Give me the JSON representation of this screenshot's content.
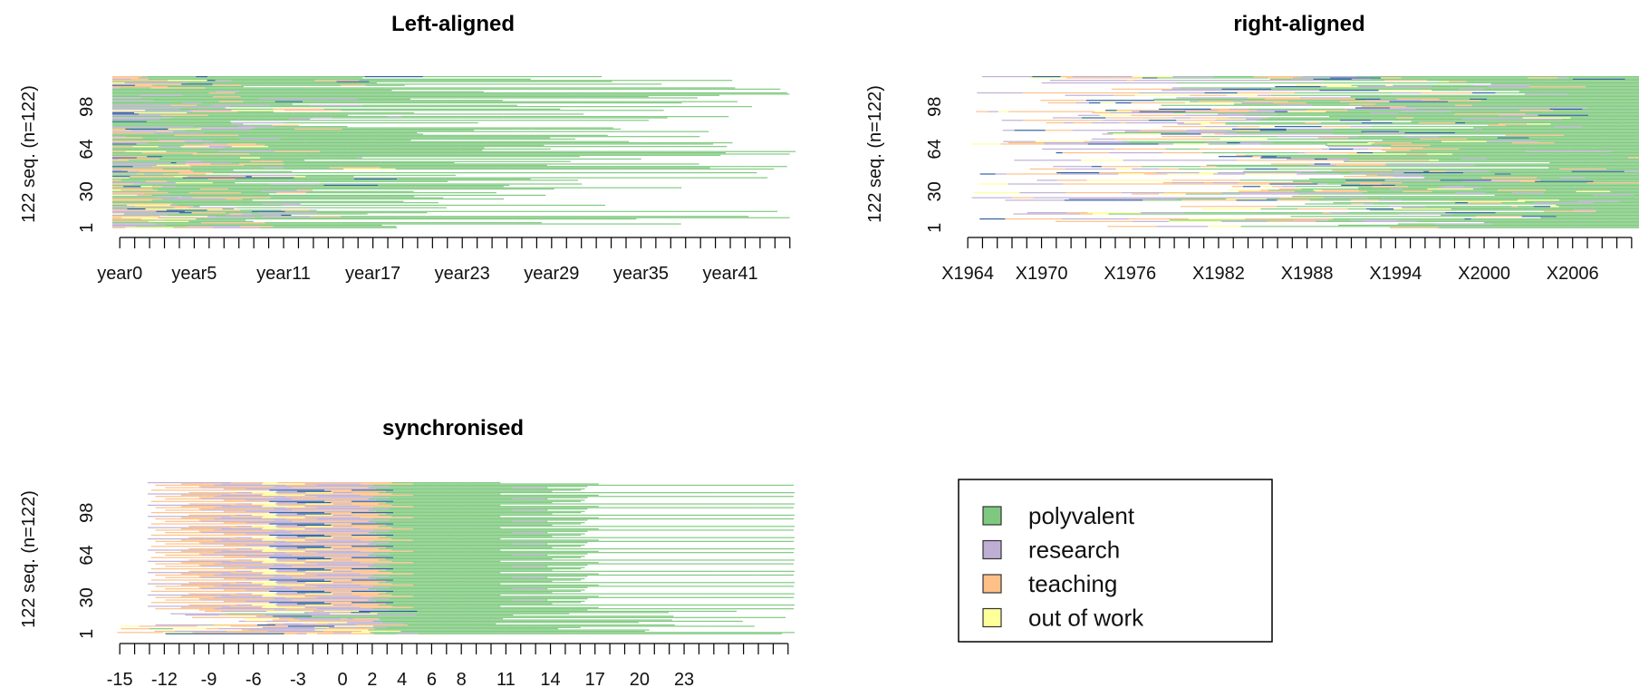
{
  "colors": {
    "polyvalent": "#7fc97f",
    "research": "#beaed4",
    "teaching": "#fdc086",
    "out_of_work": "#ffff99",
    "missing_line": "#2c5f9e"
  },
  "legend": {
    "items": [
      {
        "state": "polyvalent",
        "label": "polyvalent",
        "color": "#7fc97f"
      },
      {
        "state": "research",
        "label": "research",
        "color": "#beaed4"
      },
      {
        "state": "teaching",
        "label": "teaching",
        "color": "#fdc086"
      },
      {
        "state": "out_of_work",
        "label": "out of work",
        "color": "#ffff99"
      }
    ]
  },
  "chart_data": [
    {
      "type": "heatmap",
      "subtype": "sequence-index-plot",
      "title": "Left-aligned",
      "ylabel": "122 seq. (n=122)",
      "n_sequences": 122,
      "y_ticks": [
        "1",
        "30",
        "64",
        "98"
      ],
      "x_tick_labels": [
        "year0",
        "year5",
        "year11",
        "year17",
        "year23",
        "year29",
        "year35",
        "year41"
      ],
      "x_tick_count": 46,
      "alignment": "left"
    },
    {
      "type": "heatmap",
      "subtype": "sequence-index-plot",
      "title": "right-aligned",
      "ylabel": "122 seq. (n=122)",
      "n_sequences": 122,
      "y_ticks": [
        "1",
        "30",
        "64",
        "98"
      ],
      "x_tick_labels": [
        "X1964",
        "X1970",
        "X1976",
        "X1982",
        "X1988",
        "X1994",
        "X2000",
        "X2006"
      ],
      "x_tick_count": 46,
      "alignment": "right"
    },
    {
      "type": "heatmap",
      "subtype": "sequence-index-plot",
      "title": "synchronised",
      "ylabel": "122 seq. (n=122)",
      "n_sequences": 122,
      "y_ticks": [
        "1",
        "30",
        "64",
        "98"
      ],
      "x_tick_labels": [
        "-15",
        "-12",
        "-9",
        "-6",
        "-3",
        "0",
        "2",
        "4",
        "6",
        "8",
        "11",
        "14",
        "17",
        "20",
        "23"
      ],
      "x_tick_count": 46,
      "alignment": "synchronised"
    }
  ]
}
